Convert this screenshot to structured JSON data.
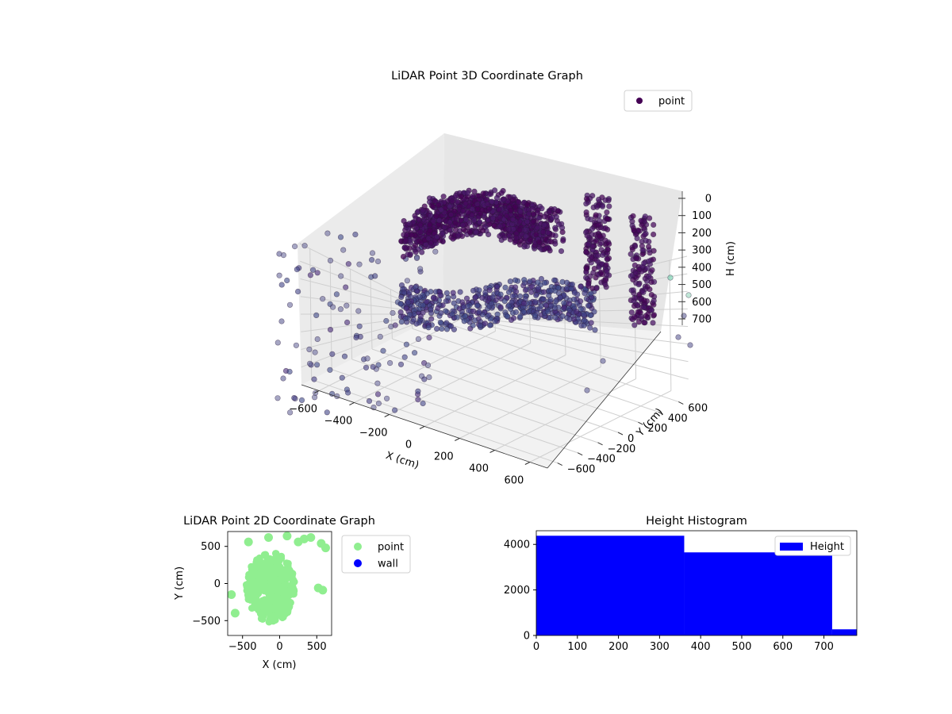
{
  "chart_data": [
    {
      "type": "scatter",
      "title": "LiDAR Point 3D Coordinate Graph",
      "xlabel": "X (cm)",
      "ylabel": "Y (cm)",
      "zlabel": "H (cm)",
      "xlim": [
        -700,
        700
      ],
      "ylim": [
        -700,
        700
      ],
      "zlim": [
        0,
        800
      ],
      "z_inverted": true,
      "x_ticks": [
        "−600",
        "−400",
        "−200",
        "0",
        "200",
        "400",
        "600"
      ],
      "y_ticks": [
        "−600",
        "−400",
        "−200",
        "0",
        "200",
        "400",
        "600"
      ],
      "z_ticks": [
        "0",
        "100",
        "200",
        "300",
        "400",
        "500",
        "600",
        "700"
      ],
      "grid": true,
      "colormap": "viridis",
      "series": [
        {
          "name": "point",
          "color": "#440154"
        }
      ],
      "legend_position": "top-right"
    },
    {
      "type": "scatter",
      "title": "LiDAR Point 2D Coordinate Graph",
      "xlabel": "X (cm)",
      "ylabel": "Y (cm)",
      "xlim": [
        -700,
        700
      ],
      "ylim": [
        -700,
        700
      ],
      "x_ticks": [
        "−500",
        "0",
        "500"
      ],
      "y_ticks": [
        "−500",
        "0",
        "500"
      ],
      "series": [
        {
          "name": "point",
          "color": "#90ee90"
        },
        {
          "name": "wall",
          "color": "#0000ff",
          "values": []
        }
      ],
      "legend_position": "outside-right"
    },
    {
      "type": "bar",
      "title": "Height Histogram",
      "xlim": [
        0,
        780
      ],
      "ylim": [
        0,
        4600
      ],
      "x_ticks": [
        "0",
        "100",
        "200",
        "300",
        "400",
        "500",
        "600",
        "700"
      ],
      "y_ticks": [
        "0",
        "2000",
        "4000"
      ],
      "bins": [
        {
          "start": 0,
          "end": 360,
          "count": 4380
        },
        {
          "start": 360,
          "end": 720,
          "count": 3650
        },
        {
          "start": 720,
          "end": 780,
          "count": 270
        }
      ],
      "series": [
        {
          "name": "Height",
          "color": "#0000ff"
        }
      ],
      "legend_position": "upper right"
    }
  ]
}
